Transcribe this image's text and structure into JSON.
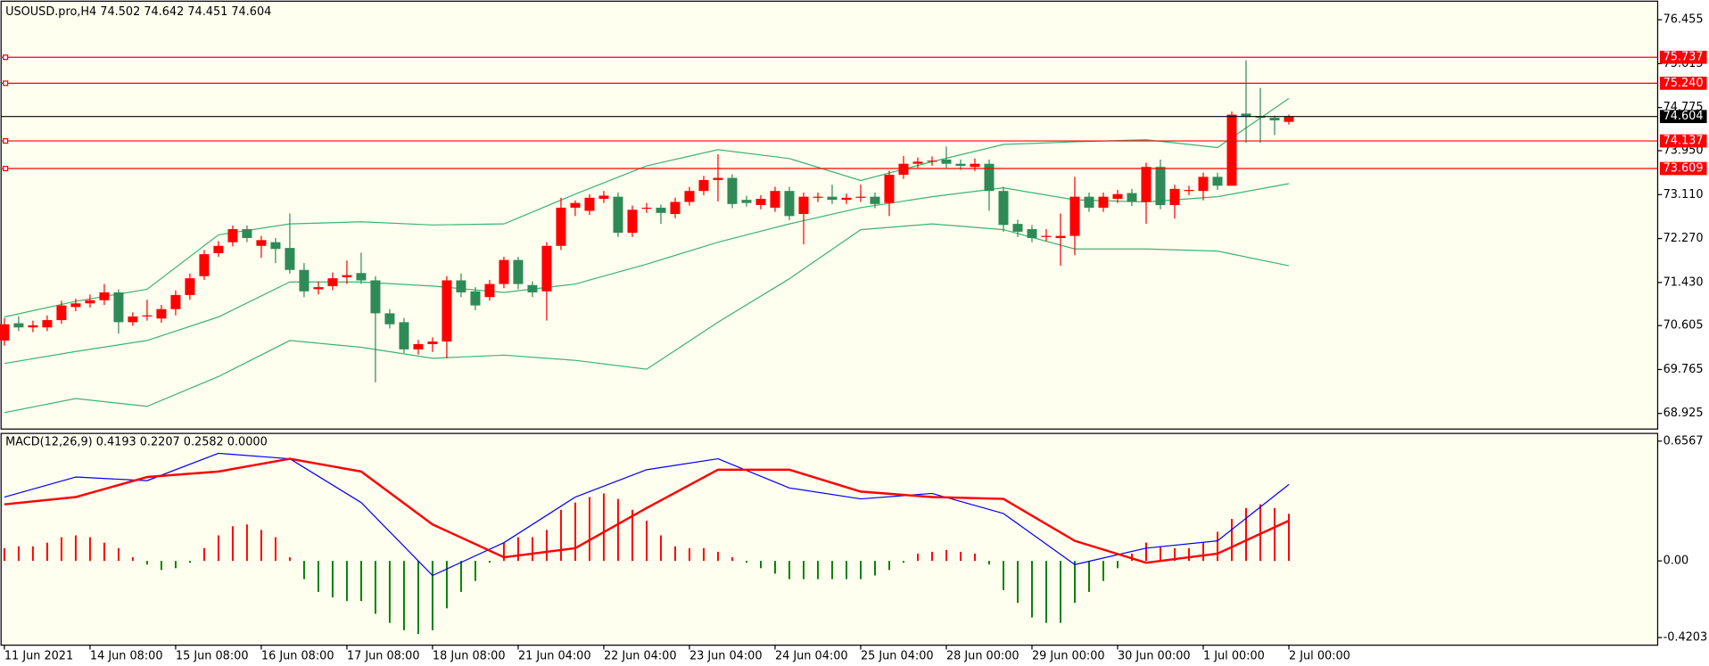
{
  "chart_data": [
    {
      "type": "candlestick",
      "title": "USOUSD.pro,H4  74.502 74.642 74.451 74.604",
      "open": [
        70.32,
        70.65,
        70.57,
        70.57,
        70.71,
        70.96,
        71.03,
        71.09,
        71.24,
        70.67,
        70.78,
        70.74,
        70.92,
        71.19,
        71.55,
        71.99,
        72.2,
        72.45,
        72.13,
        72.2,
        72.09,
        71.67,
        71.3,
        71.36,
        71.53,
        71.61,
        71.47,
        70.84,
        70.67,
        70.15,
        70.25,
        70.3,
        71.47,
        71.26,
        71.15,
        71.4,
        71.86,
        71.38,
        71.26,
        72.13,
        72.86,
        72.8,
        73.03,
        73.07,
        72.38,
        72.84,
        72.86,
        72.74,
        72.97,
        73.18,
        73.39,
        73.43,
        73.01,
        72.91,
        72.86,
        73.18,
        72.74,
        73.05,
        73.07,
        73.01,
        73.05,
        73.07,
        72.95,
        73.49,
        73.7,
        73.74,
        73.78,
        73.7,
        73.64,
        73.7,
        73.18,
        72.55,
        72.45,
        72.3,
        72.28,
        72.32,
        73.07,
        72.86,
        73.03,
        73.14,
        72.97,
        73.64,
        72.91,
        73.18,
        73.18,
        73.45,
        73.28,
        74.66,
        74.6,
        74.58,
        74.502
      ],
      "high": [
        70.75,
        70.78,
        70.7,
        70.8,
        71.08,
        71.12,
        71.2,
        71.4,
        71.3,
        70.86,
        71.1,
        71.0,
        71.28,
        71.6,
        72.05,
        72.22,
        72.52,
        72.52,
        72.32,
        72.28,
        72.75,
        71.8,
        71.45,
        71.62,
        71.85,
        72.0,
        71.55,
        70.92,
        70.75,
        70.33,
        70.38,
        71.55,
        71.6,
        71.34,
        71.48,
        71.92,
        71.92,
        71.45,
        72.2,
        73.05,
        73.0,
        73.12,
        73.18,
        73.15,
        72.9,
        72.95,
        72.92,
        73.05,
        73.26,
        73.47,
        73.88,
        73.5,
        73.09,
        73.1,
        73.26,
        73.26,
        73.15,
        73.15,
        73.3,
        73.13,
        73.3,
        73.15,
        73.57,
        73.85,
        73.82,
        73.84,
        74.03,
        73.78,
        73.8,
        73.78,
        73.26,
        72.63,
        72.53,
        72.45,
        72.75,
        73.45,
        73.15,
        73.15,
        73.2,
        73.22,
        73.72,
        73.78,
        73.3,
        73.28,
        73.53,
        73.53,
        74.7,
        75.68,
        75.15,
        74.62,
        74.642
      ],
      "low": [
        70.22,
        70.5,
        70.48,
        70.5,
        70.64,
        70.88,
        70.95,
        71.0,
        70.45,
        70.6,
        70.7,
        70.66,
        70.8,
        71.1,
        71.48,
        71.92,
        72.12,
        72.2,
        71.9,
        71.8,
        71.6,
        71.15,
        71.2,
        71.28,
        71.4,
        71.4,
        69.52,
        70.55,
        70.08,
        70.05,
        70.1,
        69.98,
        71.15,
        70.9,
        71.08,
        71.32,
        71.3,
        71.15,
        70.7,
        72.05,
        72.7,
        72.72,
        72.95,
        72.3,
        72.3,
        72.76,
        72.55,
        72.66,
        72.9,
        73.1,
        72.98,
        72.85,
        72.88,
        72.83,
        72.78,
        72.62,
        72.16,
        72.97,
        72.93,
        72.93,
        72.97,
        72.85,
        72.7,
        73.41,
        73.62,
        73.66,
        73.62,
        73.58,
        73.56,
        72.8,
        72.4,
        72.3,
        72.2,
        72.22,
        71.75,
        71.95,
        72.78,
        72.78,
        72.95,
        72.89,
        72.55,
        72.83,
        72.65,
        73.1,
        73.0,
        73.2,
        73.28,
        74.1,
        74.1,
        74.25,
        74.451
      ],
      "close": [
        70.63,
        70.57,
        70.61,
        70.71,
        70.99,
        71.03,
        71.09,
        71.24,
        70.67,
        70.78,
        70.8,
        70.92,
        71.19,
        71.51,
        71.97,
        72.13,
        72.45,
        72.28,
        72.24,
        72.07,
        71.67,
        71.26,
        71.34,
        71.51,
        71.57,
        71.47,
        70.84,
        70.63,
        70.15,
        70.25,
        70.3,
        71.47,
        71.24,
        70.99,
        71.4,
        71.86,
        71.4,
        71.24,
        72.13,
        72.86,
        72.95,
        73.05,
        73.09,
        72.38,
        72.82,
        72.86,
        72.76,
        72.97,
        73.18,
        73.39,
        73.43,
        72.93,
        72.95,
        73.03,
        73.18,
        72.7,
        73.07,
        73.07,
        73.01,
        73.05,
        73.07,
        72.93,
        73.49,
        73.7,
        73.74,
        73.76,
        73.7,
        73.66,
        73.7,
        73.18,
        72.53,
        72.4,
        72.28,
        72.32,
        72.32,
        73.07,
        72.86,
        73.07,
        73.12,
        72.97,
        73.64,
        72.91,
        73.22,
        73.2,
        73.45,
        73.28,
        74.64,
        74.6,
        74.58,
        74.53,
        74.604
      ],
      "up_color": "#ff0000",
      "down_color": "#2e8b57",
      "line_x": [
        0,
        5,
        10,
        15,
        20,
        25,
        30,
        35,
        40,
        45,
        50,
        55,
        60,
        65,
        70,
        75,
        80,
        85,
        90
      ],
      "bands": [
        {
          "color": "#3cb371",
          "values": [
            70.77,
            71.07,
            71.3,
            72.34,
            72.55,
            72.59,
            72.53,
            72.55,
            73.12,
            73.66,
            73.97,
            73.8,
            73.38,
            73.74,
            74.07,
            74.12,
            74.16,
            74.01,
            74.95
          ]
        },
        {
          "color": "#3cb371",
          "values": [
            69.88,
            70.11,
            70.32,
            70.77,
            71.44,
            71.44,
            71.36,
            71.24,
            71.4,
            71.78,
            72.2,
            72.55,
            72.86,
            73.07,
            73.24,
            73.01,
            72.97,
            73.07,
            73.32
          ]
        },
        {
          "color": "#3cb371",
          "values": [
            68.94,
            69.21,
            69.06,
            69.63,
            70.32,
            70.19,
            69.98,
            70.04,
            69.94,
            69.77,
            70.67,
            71.5,
            72.44,
            72.55,
            72.44,
            72.07,
            72.07,
            72.03,
            71.75
          ]
        }
      ],
      "levels": {
        "values": [
          75.737,
          75.24,
          74.137,
          73.609
        ],
        "value_labels": [
          "75.737",
          "75.240",
          "74.137",
          "73.609"
        ],
        "color": "#ff0000"
      },
      "bid": {
        "value": 74.604,
        "color": "#000000"
      },
      "xlim": [
        -0.23,
        115.84
      ],
      "xticks": [
        {
          "value": 0,
          "label": "11 Jun 2021"
        },
        {
          "value": 6,
          "label": "14 Jun 08:00"
        },
        {
          "value": 12,
          "label": "15 Jun 08:00"
        },
        {
          "value": 18,
          "label": "16 Jun 08:00"
        },
        {
          "value": 24,
          "label": "17 Jun 08:00"
        },
        {
          "value": 30,
          "label": "18 Jun 08:00"
        },
        {
          "value": 36,
          "label": "21 Jun 04:00"
        },
        {
          "value": 42,
          "label": "22 Jun 04:00"
        },
        {
          "value": 48,
          "label": "23 Jun 04:00"
        },
        {
          "value": 54,
          "label": "24 Jun 04:00"
        },
        {
          "value": 60,
          "label": "25 Jun 04:00"
        },
        {
          "value": 66,
          "label": "28 Jun 00:00"
        },
        {
          "value": 72,
          "label": "29 Jun 00:00"
        },
        {
          "value": 78,
          "label": "30 Jun 00:00"
        },
        {
          "value": 84,
          "label": "1 Jul 00:00"
        },
        {
          "value": 90,
          "label": "2 Jul 00:00"
        }
      ],
      "ylim": [
        68.626,
        76.81
      ],
      "yticks": [
        76.455,
        75.615,
        74.775,
        {
          "value": 73.95,
          "label": "73.950"
        },
        {
          "value": 73.11,
          "label": "73.110"
        },
        {
          "value": 72.27,
          "label": "72.270"
        },
        {
          "value": 71.43,
          "label": "71.430"
        },
        70.605,
        69.765,
        68.925
      ]
    },
    {
      "type": "macd",
      "title": "MACD(12,26,9) 0.4193 0.2207 0.2582 0.0000",
      "histogram": {
        "positive_color": "#ff0000",
        "negative_color": "#008000",
        "values": [
          0.07,
          0.08,
          0.08,
          0.1,
          0.13,
          0.14,
          0.13,
          0.1,
          0.07,
          0.02,
          -0.02,
          -0.05,
          -0.04,
          -0.01,
          0.07,
          0.14,
          0.19,
          0.2,
          0.17,
          0.13,
          0.02,
          -0.1,
          -0.17,
          -0.2,
          -0.22,
          -0.22,
          -0.29,
          -0.34,
          -0.38,
          -0.4,
          -0.38,
          -0.26,
          -0.17,
          -0.11,
          -0.01,
          0.1,
          0.13,
          0.13,
          0.17,
          0.28,
          0.32,
          0.35,
          0.37,
          0.34,
          0.28,
          0.22,
          0.14,
          0.08,
          0.07,
          0.07,
          0.05,
          0.02,
          -0.01,
          -0.04,
          -0.07,
          -0.1,
          -0.1,
          -0.1,
          -0.1,
          -0.1,
          -0.1,
          -0.08,
          -0.05,
          -0.01,
          0.04,
          0.05,
          0.06,
          0.05,
          0.04,
          -0.02,
          -0.16,
          -0.23,
          -0.31,
          -0.34,
          -0.34,
          -0.23,
          -0.17,
          -0.11,
          -0.04,
          0.04,
          0.1,
          0.08,
          0.07,
          0.07,
          0.1,
          0.16,
          0.23,
          0.29,
          0.31,
          0.29,
          0.2582
        ]
      },
      "line_x": [
        0,
        5,
        10,
        15,
        20,
        25,
        30,
        35,
        40,
        45,
        50,
        55,
        60,
        65,
        70,
        75,
        80,
        85,
        90
      ],
      "lines": [
        {
          "color": "#0000ff",
          "width": 1,
          "values": [
            0.35,
            0.46,
            0.44,
            0.59,
            0.56,
            0.32,
            -0.08,
            0.1,
            0.35,
            0.5,
            0.56,
            0.4,
            0.34,
            0.37,
            0.26,
            -0.02,
            0.07,
            0.11,
            0.4193
          ]
        },
        {
          "color": "#ff0000",
          "width": 2,
          "values": [
            0.31,
            0.35,
            0.46,
            0.49,
            0.56,
            0.49,
            0.2,
            0.02,
            0.07,
            0.29,
            0.5,
            0.5,
            0.38,
            0.35,
            0.34,
            0.11,
            -0.01,
            0.04,
            0.2207
          ]
        }
      ],
      "ylim": [
        -0.462,
        0.699
      ],
      "yticks": [
        0.6567,
        {
          "value": 0,
          "label": "0.00"
        },
        -0.4203
      ]
    }
  ]
}
